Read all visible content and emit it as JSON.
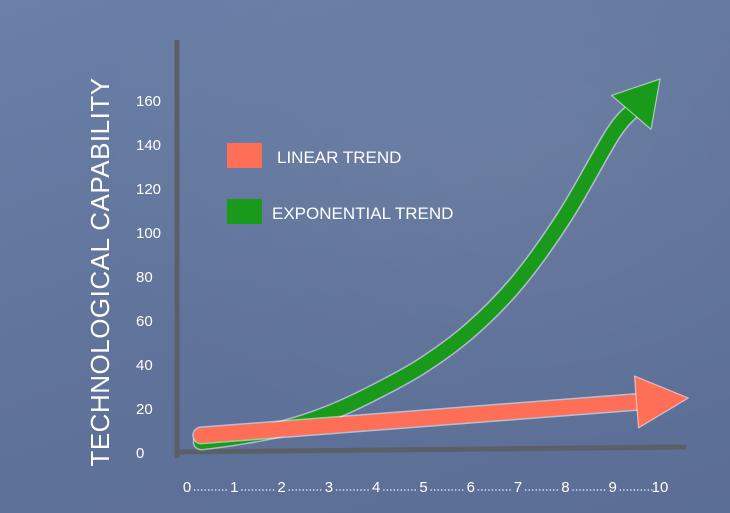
{
  "chart_data": {
    "type": "line",
    "title": "",
    "ylabel": "TECHNOLOGICAL CAPABILITY",
    "xlabel": "",
    "x_ticks": [
      "0",
      "1",
      "2",
      "3",
      "4",
      "5",
      "6",
      "7",
      "8",
      "9",
      "10"
    ],
    "y_ticks": [
      "0",
      "20",
      "40",
      "60",
      "80",
      "100",
      "120",
      "140",
      "160"
    ],
    "xlim": [
      0,
      10
    ],
    "ylim": [
      0,
      175
    ],
    "grid": false,
    "legend_position": "top-left",
    "series": [
      {
        "name": "LINEAR TREND",
        "color": "#ff6f57",
        "x": [
          0.3,
          10.6
        ],
        "y": [
          8,
          25
        ]
      },
      {
        "name": "EXPONENTIAL TREND",
        "color": "#1a9a1a",
        "x": [
          0.3,
          1,
          2,
          3,
          4,
          5,
          6,
          7,
          8,
          9,
          10
        ],
        "y": [
          5,
          7,
          11,
          18,
          28,
          40,
          56,
          78,
          108,
          145,
          170
        ]
      }
    ]
  }
}
